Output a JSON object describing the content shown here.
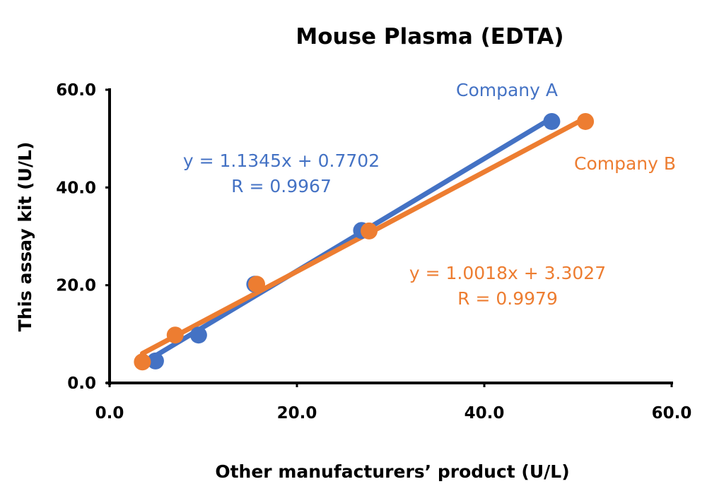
{
  "chart_data": {
    "type": "scatter",
    "title": "Mouse Plasma (EDTA)",
    "xlabel": "Other manufacturers’ product (U/L)",
    "ylabel": "This assay kit (U/L)",
    "xlim": [
      0,
      60
    ],
    "ylim": [
      0,
      60
    ],
    "x_ticks": [
      "0.0",
      "20.0",
      "40.0",
      "60.0"
    ],
    "y_ticks": [
      "0.0",
      "20.0",
      "40.0",
      "60.0"
    ],
    "grid": false,
    "series": [
      {
        "name": "Company A",
        "color": "#4472C4",
        "x": [
          4.9,
          9.5,
          15.5,
          26.9,
          47.2
        ],
        "y": [
          4.5,
          9.8,
          20.2,
          31.2,
          53.5
        ],
        "equation": "y = 1.1345x + 0.7702",
        "r": "R = 0.9967"
      },
      {
        "name": "Company B",
        "color": "#ED7D31",
        "x": [
          3.5,
          7.0,
          15.7,
          27.7,
          50.8
        ],
        "y": [
          4.3,
          9.8,
          20.2,
          31.1,
          53.5
        ],
        "equation": "y = 1.0018x + 3.3027",
        "r": "R = 0.9979"
      }
    ]
  }
}
